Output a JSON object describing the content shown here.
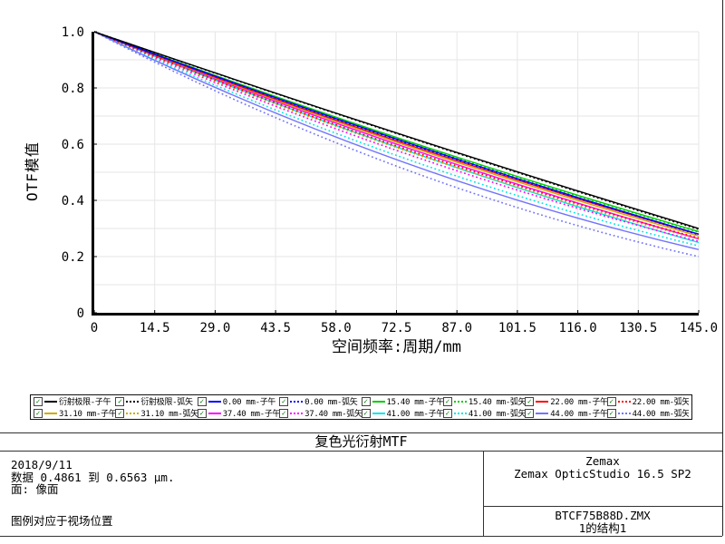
{
  "chart_data": {
    "type": "line",
    "title": "复色光衍射MTF",
    "xlabel": "空间频率:周期/mm",
    "ylabel": "OTF模值",
    "xlim": [
      0,
      145
    ],
    "ylim": [
      0,
      1
    ],
    "grid": true,
    "legend_position": "bottom",
    "x": [
      0,
      72.5,
      145
    ],
    "x_tick_values": [
      0,
      14.5,
      29,
      43.5,
      58,
      72.5,
      87,
      101.5,
      116,
      130.5,
      145
    ],
    "x_tick_labels": [
      "0",
      "14.5",
      "29.0",
      "43.5",
      "58.0",
      "72.5",
      "87.0",
      "101.5",
      "116.0",
      "130.5",
      "145.0"
    ],
    "y_tick_values": [
      0,
      0.2,
      0.4,
      0.6,
      0.8,
      1.0
    ],
    "y_tick_labels": [
      "0",
      "0.2",
      "0.4",
      "0.6",
      "0.8",
      "1.0"
    ],
    "series": [
      {
        "name": "衍射极限-子午",
        "color": "#000000",
        "dash": "solid",
        "values": [
          1.0,
          0.64,
          0.3
        ]
      },
      {
        "name": "衍射极限-弧矢",
        "color": "#000000",
        "dash": "dotted",
        "values": [
          1.0,
          0.638,
          0.297
        ]
      },
      {
        "name": "0.00 mm-子午",
        "color": "#0000ff",
        "dash": "solid",
        "values": [
          1.0,
          0.618,
          0.28
        ]
      },
      {
        "name": "0.00 mm-弧矢",
        "color": "#0000ff",
        "dash": "dotted",
        "values": [
          1.0,
          0.616,
          0.278
        ]
      },
      {
        "name": "15.40 mm-子午",
        "color": "#00cc00",
        "dash": "solid",
        "values": [
          1.0,
          0.624,
          0.289
        ]
      },
      {
        "name": "15.40 mm-弧矢",
        "color": "#00cc00",
        "dash": "dotted",
        "values": [
          1.0,
          0.622,
          0.287
        ]
      },
      {
        "name": "22.00 mm-子午",
        "color": "#ff0000",
        "dash": "solid",
        "values": [
          1.0,
          0.612,
          0.279
        ]
      },
      {
        "name": "22.00 mm-弧矢",
        "color": "#ff0000",
        "dash": "dotted",
        "values": [
          1.0,
          0.594,
          0.266
        ]
      },
      {
        "name": "31.10 mm-子午",
        "color": "#ccaa00",
        "dash": "solid",
        "values": [
          1.0,
          0.607,
          0.273
        ]
      },
      {
        "name": "31.10 mm-弧矢",
        "color": "#ccaa00",
        "dash": "dotted",
        "values": [
          1.0,
          0.588,
          0.262
        ]
      },
      {
        "name": "37.40 mm-子午",
        "color": "#ff00ff",
        "dash": "solid",
        "values": [
          1.0,
          0.6,
          0.263
        ]
      },
      {
        "name": "37.40 mm-弧矢",
        "color": "#ff00ff",
        "dash": "dotted",
        "values": [
          1.0,
          0.578,
          0.254
        ]
      },
      {
        "name": "41.00 mm-子午",
        "color": "#00e5e5",
        "dash": "solid",
        "values": [
          1.0,
          0.59,
          0.25
        ]
      },
      {
        "name": "41.00 mm-弧矢",
        "color": "#00e5e5",
        "dash": "dotted",
        "values": [
          1.0,
          0.56,
          0.238
        ]
      },
      {
        "name": "44.00 mm-子午",
        "color": "#7373ff",
        "dash": "solid",
        "values": [
          1.0,
          0.545,
          0.225
        ]
      },
      {
        "name": "44.00 mm-弧矢",
        "color": "#7373ff",
        "dash": "dotted",
        "values": [
          1.0,
          0.522,
          0.2
        ]
      }
    ]
  },
  "axes": {
    "ylabel": "OTF模值",
    "xlabel": "空间频率:周期/mm"
  },
  "title_bar": {
    "title": "复色光衍射MTF"
  },
  "info": {
    "date": "2018/9/11",
    "data_range": "数据 0.4861 到 0.6563 µm.",
    "surface": "面: 像面",
    "legend_note": "图例对应于视场位置"
  },
  "branding": {
    "vendor": "Zemax",
    "product": "Zemax OpticStudio 16.5 SP2",
    "file": "BTCF75B88D.ZMX",
    "config": "1的结构1"
  },
  "colors": {
    "grid": "#e6e6e6",
    "axis": "#000000",
    "rule": "#333333",
    "check": "#007700"
  }
}
